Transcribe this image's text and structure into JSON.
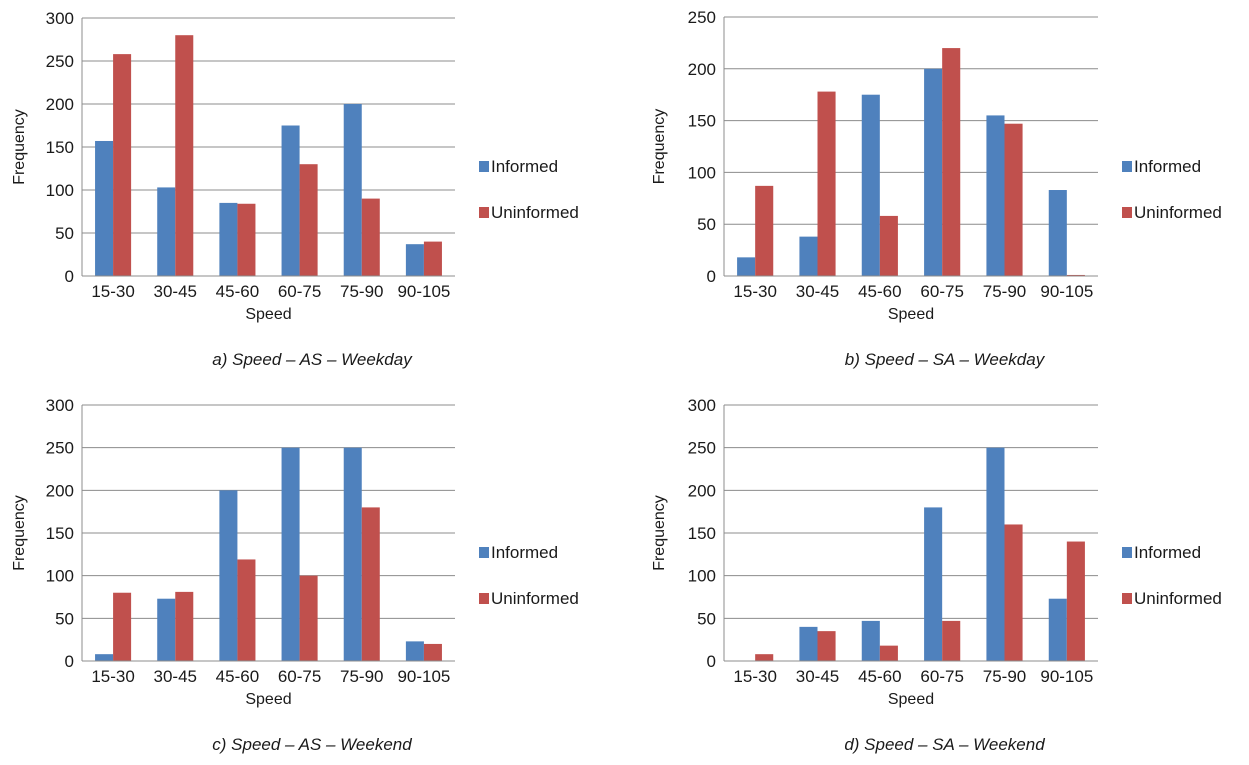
{
  "colors": {
    "informed": "#4f81bd",
    "uninformed": "#c0504d",
    "grid": "#8c8c8c",
    "axis": "#8c8c8c"
  },
  "chart_data": [
    {
      "type": "bar",
      "caption": "a) Speed – AS – Weekday",
      "xlabel": "Speed",
      "ylabel": "Frequency",
      "ylim": [
        0,
        300
      ],
      "yticks": [
        0,
        50,
        100,
        150,
        200,
        250,
        300
      ],
      "grid": true,
      "legend": "right",
      "categories": [
        "15-30",
        "30-45",
        "45-60",
        "60-75",
        "75-90",
        "90-105"
      ],
      "series": [
        {
          "name": "Informed",
          "values": [
            157,
            103,
            85,
            175,
            200,
            37
          ]
        },
        {
          "name": "Uninformed",
          "values": [
            258,
            280,
            84,
            130,
            90,
            40
          ]
        }
      ]
    },
    {
      "type": "bar",
      "caption": "b) Speed – SA – Weekday",
      "xlabel": "Speed",
      "ylabel": "Frequency",
      "ylim": [
        0,
        250
      ],
      "yticks": [
        0,
        50,
        100,
        150,
        200,
        250
      ],
      "grid": true,
      "legend": "right",
      "categories": [
        "15-30",
        "30-45",
        "45-60",
        "60-75",
        "75-90",
        "90-105"
      ],
      "series": [
        {
          "name": "Informed",
          "values": [
            18,
            38,
            175,
            200,
            155,
            83
          ]
        },
        {
          "name": "Uninformed",
          "values": [
            87,
            178,
            58,
            220,
            147,
            1
          ]
        }
      ]
    },
    {
      "type": "bar",
      "caption": "c) Speed – AS – Weekend",
      "xlabel": "Speed",
      "ylabel": "Frequency",
      "ylim": [
        0,
        300
      ],
      "yticks": [
        0,
        50,
        100,
        150,
        200,
        250,
        300
      ],
      "grid": true,
      "legend": "right",
      "categories": [
        "15-30",
        "30-45",
        "45-60",
        "60-75",
        "75-90",
        "90-105"
      ],
      "series": [
        {
          "name": "Informed",
          "values": [
            8,
            73,
            200,
            250,
            250,
            23
          ]
        },
        {
          "name": "Uninformed",
          "values": [
            80,
            81,
            119,
            100,
            180,
            20
          ]
        }
      ]
    },
    {
      "type": "bar",
      "caption": "d) Speed – SA – Weekend",
      "xlabel": "Speed",
      "ylabel": "Frequency",
      "ylim": [
        0,
        300
      ],
      "yticks": [
        0,
        50,
        100,
        150,
        200,
        250,
        300
      ],
      "grid": true,
      "legend": "right",
      "categories": [
        "15-30",
        "30-45",
        "45-60",
        "60-75",
        "75-90",
        "90-105"
      ],
      "series": [
        {
          "name": "Informed",
          "values": [
            0,
            40,
            47,
            180,
            250,
            73
          ]
        },
        {
          "name": "Uninformed",
          "values": [
            8,
            35,
            18,
            47,
            160,
            140
          ]
        }
      ]
    }
  ]
}
